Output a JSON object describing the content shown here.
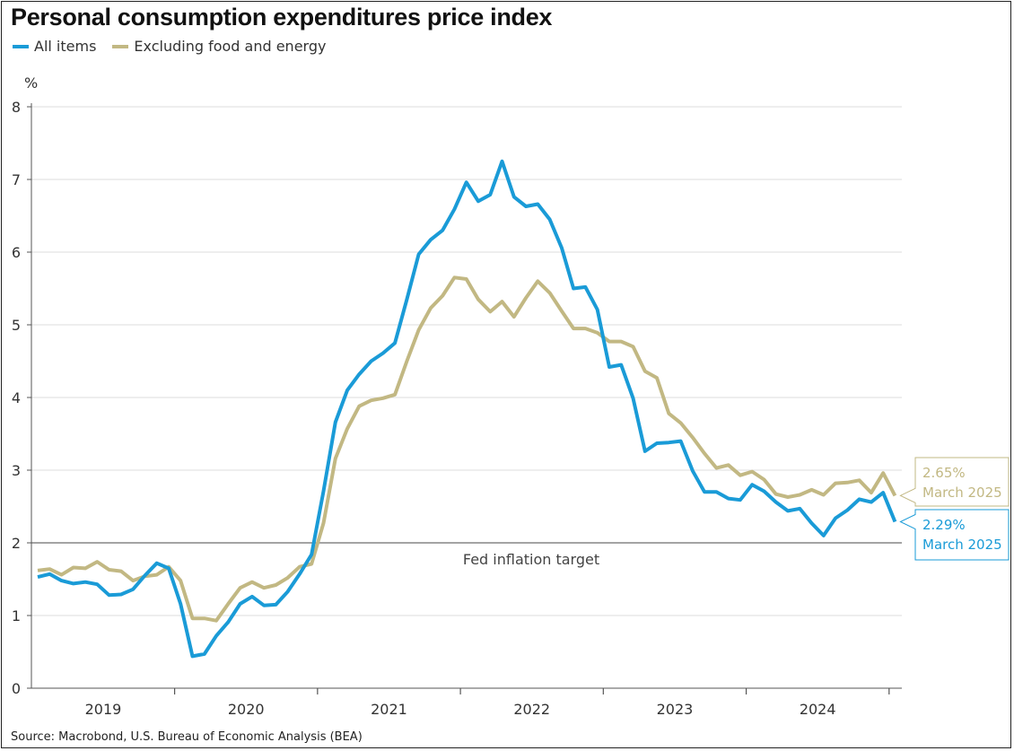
{
  "chart_data": {
    "type": "line",
    "title": "Personal consumption expenditures price index",
    "ylabel": "%",
    "ylim": [
      0,
      8
    ],
    "yticks": [
      "0",
      "1",
      "2",
      "3",
      "4",
      "5",
      "6",
      "7",
      "8"
    ],
    "xticks": [
      "2019",
      "2020",
      "2021",
      "2022",
      "2023",
      "2024"
    ],
    "x_start": "2019-01",
    "x_end": "2025-03",
    "grid": true,
    "legend": "top-left",
    "reference_line": {
      "value": 2,
      "label": "Fed inflation target"
    },
    "series": [
      {
        "name": "All items",
        "color": "#1a9bd7",
        "values": [
          1.53,
          1.57,
          1.48,
          1.44,
          1.46,
          1.43,
          1.28,
          1.29,
          1.36,
          1.55,
          1.72,
          1.65,
          1.16,
          0.44,
          0.47,
          0.72,
          0.91,
          1.16,
          1.26,
          1.14,
          1.15,
          1.33,
          1.57,
          1.84,
          2.71,
          3.66,
          4.1,
          4.32,
          4.5,
          4.61,
          4.75,
          5.35,
          5.97,
          6.17,
          6.3,
          6.59,
          6.96,
          6.7,
          6.79,
          7.25,
          6.76,
          6.63,
          6.66,
          6.45,
          6.06,
          5.5,
          5.52,
          5.21,
          4.42,
          4.45,
          3.99,
          3.26,
          3.37,
          3.38,
          3.4,
          2.99,
          2.7,
          2.7,
          2.61,
          2.59,
          2.8,
          2.71,
          2.56,
          2.44,
          2.47,
          2.27,
          2.1,
          2.34,
          2.45,
          2.6,
          2.56,
          2.69,
          2.29
        ]
      },
      {
        "name": "Excluding food and energy",
        "color": "#c2b883",
        "values": [
          1.62,
          1.64,
          1.56,
          1.66,
          1.65,
          1.74,
          1.63,
          1.61,
          1.48,
          1.54,
          1.56,
          1.67,
          1.48,
          0.96,
          0.96,
          0.93,
          1.16,
          1.38,
          1.46,
          1.38,
          1.42,
          1.52,
          1.67,
          1.71,
          2.27,
          3.16,
          3.57,
          3.88,
          3.96,
          3.99,
          4.04,
          4.5,
          4.93,
          5.23,
          5.4,
          5.65,
          5.63,
          5.35,
          5.18,
          5.32,
          5.11,
          5.37,
          5.6,
          5.44,
          5.19,
          4.95,
          4.95,
          4.89,
          4.77,
          4.77,
          4.7,
          4.36,
          4.27,
          3.78,
          3.65,
          3.45,
          3.23,
          3.03,
          3.07,
          2.93,
          2.98,
          2.87,
          2.67,
          2.63,
          2.66,
          2.73,
          2.66,
          2.82,
          2.83,
          2.86,
          2.69,
          2.96,
          2.65
        ]
      }
    ],
    "annotations": [
      {
        "series": "Excluding food and energy",
        "value_label": "2.65%",
        "date_label": "March 2025"
      },
      {
        "series": "All items",
        "value_label": "2.29%",
        "date_label": "March 2025"
      }
    ]
  },
  "source": "Source: Macrobond, U.S. Bureau of Economic Analysis (BEA)"
}
